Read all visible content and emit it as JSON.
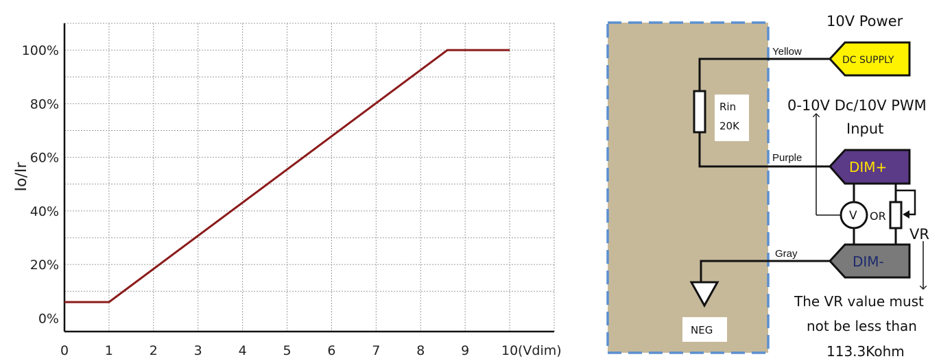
{
  "chart_data": {
    "type": "line",
    "xlabel": "(Vdim)",
    "ylabel": "Io/Ir",
    "x_ticks": [
      "0",
      "1",
      "2",
      "3",
      "4",
      "5",
      "6",
      "7",
      "8",
      "9",
      "10"
    ],
    "y_ticks": [
      "0%",
      "20%",
      "40%",
      "60%",
      "80%",
      "100%"
    ],
    "xlim": [
      0,
      11
    ],
    "ylim": [
      -5,
      110
    ],
    "grid": true,
    "series": [
      {
        "color": "#8b1a1a",
        "x": [
          0,
          1,
          8.6,
          10
        ],
        "y": [
          6,
          6,
          100,
          100
        ]
      }
    ]
  },
  "diagram": {
    "power_label": "10V Power",
    "yellow_label": "Yellow",
    "dc_supply": "DC SUPPLY",
    "rin_label": "Rin",
    "rin_value": "20K",
    "input_line1": "0-10V Dc/10V PWM",
    "input_line2": "Input",
    "purple_label": "Purple",
    "dim_plus": "DIM+",
    "voltmeter": "V",
    "or_label": "OR",
    "vr_label": "VR",
    "gray_label": "Gray",
    "dim_minus": "DIM-",
    "neg_label": "NEG",
    "note_line1": "The VR value must",
    "note_line2": "not be less than",
    "note_line3": "113.3Kohm",
    "colors": {
      "box_fill": "#c6b99a",
      "box_border": "#5b8fd0",
      "dc_supply": "#fff200",
      "dim_plus": "#5b3a87",
      "dim_minus": "#7a7a7a",
      "curve": "#8b1a1a"
    }
  }
}
